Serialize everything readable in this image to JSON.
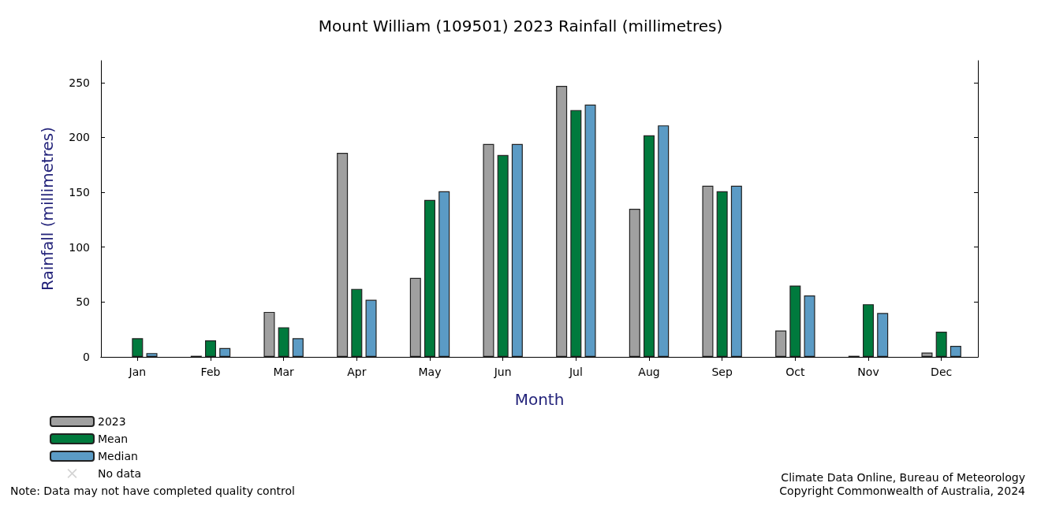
{
  "chart_data": {
    "type": "bar",
    "title": "Mount William (109501) 2023 Rainfall (millimetres)",
    "xlabel": "Month",
    "ylabel": "Rainfall (millimetres)",
    "categories": [
      "Jan",
      "Feb",
      "Mar",
      "Apr",
      "May",
      "Jun",
      "Jul",
      "Aug",
      "Sep",
      "Oct",
      "Nov",
      "Dec"
    ],
    "series": [
      {
        "name": "2023",
        "color": "#a0a0a0",
        "values": [
          null,
          1,
          41,
          186,
          72,
          194,
          247,
          135,
          156,
          24,
          1,
          4
        ]
      },
      {
        "name": "Mean",
        "color": "#007a3d",
        "values": [
          17,
          15,
          27,
          62,
          143,
          184,
          225,
          202,
          151,
          65,
          48,
          23
        ]
      },
      {
        "name": "Median",
        "color": "#5b9bc5",
        "values": [
          3.5,
          8,
          17,
          52,
          151,
          194,
          230,
          211,
          156,
          56,
          40,
          10
        ]
      },
      {
        "name": "No data",
        "type": "scatter",
        "color": "#c8c8c8",
        "marker": "cross",
        "values": [
          null,
          null,
          null,
          null,
          null,
          null,
          null,
          null,
          null,
          null,
          null,
          null
        ]
      }
    ],
    "ylim": [
      0,
      270
    ],
    "yticks": [
      0,
      50,
      100,
      150,
      200,
      250
    ],
    "grid": false,
    "legend": "bottom left",
    "annotations": [
      "Note: Data may not have completed quality control",
      "Climate Data Online, Bureau of Meteorology",
      "Copyright Commonwealth of Australia, 2024"
    ]
  }
}
